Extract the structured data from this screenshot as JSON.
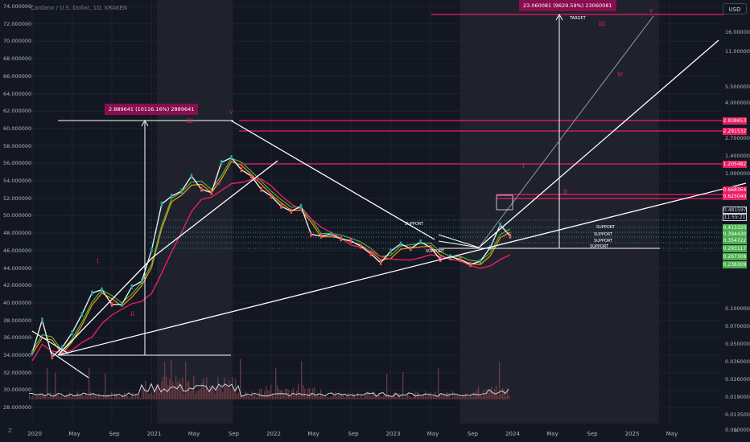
{
  "header": {
    "symbol_line": "Cardano / U.S. Dollar, 1D, KRAKEN"
  },
  "currency_button": "USD",
  "z_button": "Z",
  "a_button": "A",
  "left_axis_labels": [
    "74.000000",
    "72.000000",
    "70.000000",
    "68.000000",
    "66.000000",
    "64.000000",
    "62.000000",
    "60.000000",
    "58.000000",
    "56.000000",
    "54.000000",
    "52.000000",
    "50.000000",
    "48.000000",
    "46.000000",
    "44.000000",
    "42.000000",
    "40.000000",
    "38.000000",
    "36.000000",
    "34.000000",
    "32.000000",
    "30.000000",
    "28.000000"
  ],
  "right_axis_labels": [
    "16.000000",
    "11.000000",
    "5.500000",
    "4.000000",
    "2.700000",
    "1.400000",
    "1.000000",
    "0.100000",
    "0.070000",
    "0.050000",
    "0.036000",
    "0.026000",
    "0.019000",
    "0.013500",
    "0.000000"
  ],
  "price_tags": [
    {
      "text": "2.838653",
      "style": "red"
    },
    {
      "text": "2.291532",
      "style": "red"
    },
    {
      "text": "1.205482",
      "style": "red"
    },
    {
      "text": "0.668364",
      "style": "red"
    },
    {
      "text": "0.625040",
      "style": "red"
    },
    {
      "text": "0.481597",
      "style": "white"
    },
    {
      "text": "11:55:21",
      "style": "white"
    },
    {
      "text": "0.413320",
      "style": "green"
    },
    {
      "text": "0.394430",
      "style": "green"
    },
    {
      "text": "0.354722",
      "style": "green"
    },
    {
      "text": "0.293117",
      "style": "green"
    },
    {
      "text": "0.267308",
      "style": "green"
    },
    {
      "text": "0.238309",
      "style": "green"
    }
  ],
  "x_axis_labels": [
    "2020",
    "May",
    "Sep",
    "2021",
    "May",
    "Sep",
    "2022",
    "May",
    "Sep",
    "2023",
    "May",
    "Sep",
    "2024",
    "May",
    "Sep",
    "2025",
    "May"
  ],
  "annotations": {
    "measure_box_1": "2.889641 (10116.16%) 2889641",
    "measure_box_2": "23.060081 (9629.59%) 23060081",
    "target_label": "TARGET",
    "support_labels": [
      "SUPPORT",
      "SUPPORT",
      "SUPPORT",
      "SUPPORT",
      "SUPPORT",
      "SUPPORT"
    ],
    "wave_labels_2021": [
      "i",
      "ii",
      "iii",
      "iv",
      "v"
    ],
    "wave_labels_2024": [
      "i",
      "ii",
      "iii",
      "iv",
      "v"
    ]
  },
  "colors": {
    "background": "#131722",
    "grid": "#1e222d",
    "candle_up": "#26a69a",
    "candle_down": "#ef5350",
    "ema_orange": "#ff9800",
    "ema_green": "#4caf50",
    "ma_pink": "#e91e63",
    "trendline": "#ffffff",
    "resistance": "#e91e63",
    "support_dotted": "#26a69a",
    "volume": "#7b3f45",
    "highlight_zone": "#1f222d"
  },
  "chart_data": {
    "type": "line",
    "title": "Cardano / U.S. Dollar, 1D, KRAKEN",
    "xlabel": "",
    "ylabel": "",
    "scale": "log",
    "x_range": [
      "2020-01",
      "2025-06"
    ],
    "series": [
      {
        "values": [
          [
            "2020-01",
            0.033
          ],
          [
            "2020-02",
            0.07
          ],
          [
            "2020-03",
            0.03
          ],
          [
            "2020-04",
            0.037
          ],
          [
            "2020-05",
            0.052
          ],
          [
            "2020-06",
            0.08
          ],
          [
            "2020-07",
            0.13
          ],
          [
            "2020-08",
            0.14
          ],
          [
            "2020-09",
            0.1
          ],
          [
            "2020-10",
            0.1
          ],
          [
            "2020-11",
            0.15
          ],
          [
            "2020-12",
            0.17
          ],
          [
            "2021-01",
            0.35
          ],
          [
            "2021-02",
            1.0
          ],
          [
            "2021-03",
            1.2
          ],
          [
            "2021-04",
            1.35
          ],
          [
            "2021-05",
            1.9
          ],
          [
            "2021-06",
            1.4
          ],
          [
            "2021-07",
            1.3
          ],
          [
            "2021-08",
            2.6
          ],
          [
            "2021-09",
            2.9
          ],
          [
            "2021-10",
            2.2
          ],
          [
            "2021-11",
            1.9
          ],
          [
            "2021-12",
            1.4
          ],
          [
            "2022-01",
            1.2
          ],
          [
            "2022-02",
            0.95
          ],
          [
            "2022-03",
            0.85
          ],
          [
            "2022-04",
            0.95
          ],
          [
            "2022-05",
            0.5
          ],
          [
            "2022-06",
            0.48
          ],
          [
            "2022-07",
            0.5
          ],
          [
            "2022-08",
            0.45
          ],
          [
            "2022-09",
            0.43
          ],
          [
            "2022-10",
            0.38
          ],
          [
            "2022-11",
            0.32
          ],
          [
            "2022-12",
            0.26
          ],
          [
            "2023-01",
            0.34
          ],
          [
            "2023-02",
            0.4
          ],
          [
            "2023-03",
            0.36
          ],
          [
            "2023-04",
            0.42
          ],
          [
            "2023-05",
            0.37
          ],
          [
            "2023-06",
            0.28
          ],
          [
            "2023-07",
            0.3
          ],
          [
            "2023-08",
            0.28
          ],
          [
            "2023-09",
            0.25
          ],
          [
            "2023-10",
            0.27
          ],
          [
            "2023-11",
            0.37
          ],
          [
            "2023-12",
            0.62
          ],
          [
            "2024-01",
            0.48
          ]
        ]
      }
    ],
    "levels": {
      "resistance": [
        2.838653,
        2.291532,
        1.205482,
        0.668364,
        0.62504
      ],
      "support": [
        0.41332,
        0.39443,
        0.354722,
        0.293117,
        0.267308,
        0.238309
      ],
      "last_price": 0.481597,
      "target": 23.060081
    },
    "grid": true
  }
}
